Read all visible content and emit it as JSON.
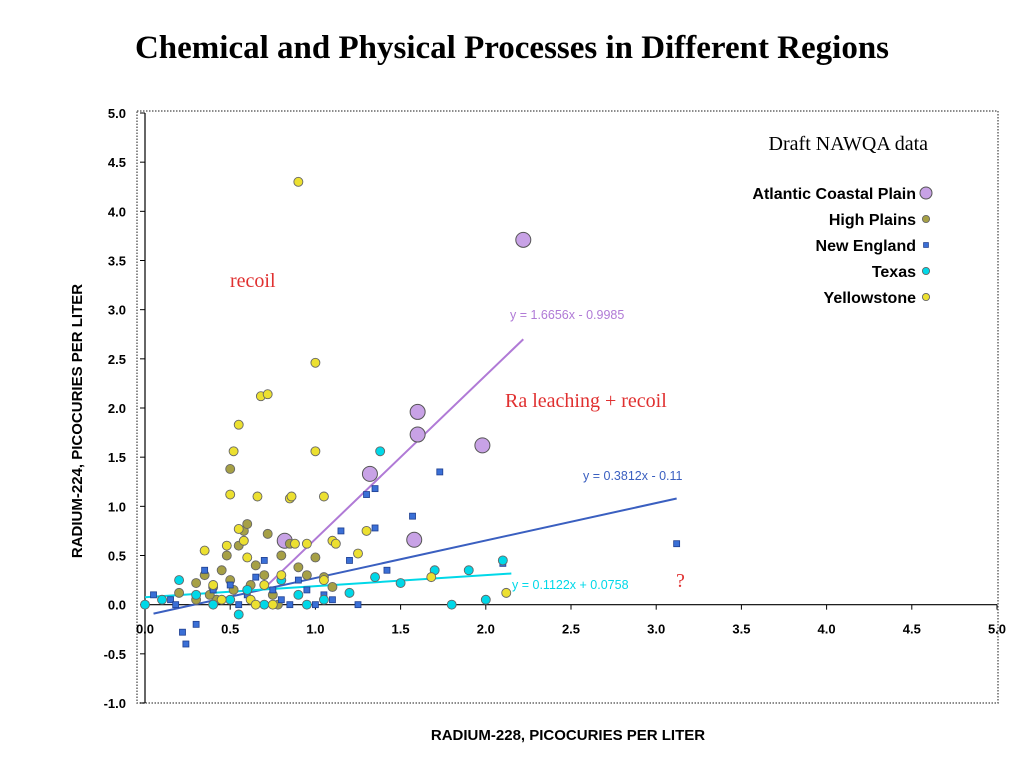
{
  "slide": {
    "title": "Chemical and Physical Processes in Different Regions"
  },
  "chart_data": {
    "type": "scatter",
    "xlabel": "RADIUM-228, PICOCURIES PER LITER",
    "ylabel": "RADIUM-224, PICOCURIES PER LITER",
    "xlim": [
      0,
      5
    ],
    "ylim": [
      -1,
      5
    ],
    "x_ticks": [
      "0.0",
      "0.5",
      "1.0",
      "1.5",
      "2.0",
      "2.5",
      "3.0",
      "3.5",
      "4.0",
      "4.5",
      "5.0"
    ],
    "y_ticks": [
      "5.0",
      "4.5",
      "4.0",
      "3.5",
      "3.0",
      "2.5",
      "2.0",
      "1.5",
      "1.0",
      "0.5",
      "0.0",
      "-0.5",
      "-1.0"
    ],
    "grid": false,
    "legend_position": "top-right",
    "legend_title": "Draft NAWQA data",
    "series": [
      {
        "name": "Atlantic Coastal Plain",
        "color": "#c8a2e6",
        "marker": "large-circle",
        "points": [
          [
            0.82,
            0.65
          ],
          [
            1.32,
            1.33
          ],
          [
            1.58,
            0.66
          ],
          [
            1.6,
            1.73
          ],
          [
            1.6,
            1.96
          ],
          [
            1.98,
            1.62
          ],
          [
            2.22,
            3.71
          ]
        ]
      },
      {
        "name": "High Plains",
        "color": "#a6a045",
        "marker": "circle",
        "points": [
          [
            0.2,
            0.12
          ],
          [
            0.3,
            0.22
          ],
          [
            0.35,
            0.3
          ],
          [
            0.4,
            0.18
          ],
          [
            0.45,
            0.35
          ],
          [
            0.48,
            0.5
          ],
          [
            0.5,
            0.25
          ],
          [
            0.52,
            0.15
          ],
          [
            0.55,
            0.6
          ],
          [
            0.58,
            0.75
          ],
          [
            0.6,
            0.82
          ],
          [
            0.65,
            0.4
          ],
          [
            0.7,
            0.3
          ],
          [
            0.75,
            0.1
          ],
          [
            0.8,
            0.5
          ],
          [
            0.85,
            0.62
          ],
          [
            0.9,
            0.38
          ],
          [
            0.95,
            0.3
          ],
          [
            1.0,
            0.48
          ],
          [
            1.05,
            0.28
          ],
          [
            1.1,
            0.18
          ],
          [
            0.5,
            1.38
          ],
          [
            0.42,
            0.05
          ],
          [
            0.62,
            0.2
          ],
          [
            0.72,
            0.72
          ],
          [
            0.78,
            0.0
          ],
          [
            0.3,
            0.05
          ],
          [
            0.38,
            0.1
          ]
        ]
      },
      {
        "name": "New England",
        "color": "#3a6fd6",
        "marker": "small-square",
        "points": [
          [
            0.05,
            0.1
          ],
          [
            0.15,
            0.05
          ],
          [
            0.18,
            0.0
          ],
          [
            0.22,
            -0.28
          ],
          [
            0.24,
            -0.4
          ],
          [
            0.3,
            -0.2
          ],
          [
            0.35,
            0.35
          ],
          [
            0.4,
            0.15
          ],
          [
            0.45,
            0.05
          ],
          [
            0.5,
            0.2
          ],
          [
            0.55,
            0.0
          ],
          [
            0.6,
            0.1
          ],
          [
            0.65,
            0.28
          ],
          [
            0.7,
            0.45
          ],
          [
            0.75,
            0.15
          ],
          [
            0.8,
            0.05
          ],
          [
            0.85,
            0.0
          ],
          [
            0.9,
            0.25
          ],
          [
            0.95,
            0.15
          ],
          [
            1.0,
            0.0
          ],
          [
            1.05,
            0.1
          ],
          [
            1.1,
            0.05
          ],
          [
            1.15,
            0.75
          ],
          [
            1.2,
            0.45
          ],
          [
            1.25,
            0.0
          ],
          [
            1.3,
            1.12
          ],
          [
            1.35,
            1.18
          ],
          [
            1.35,
            0.78
          ],
          [
            1.42,
            0.35
          ],
          [
            1.57,
            0.9
          ],
          [
            1.73,
            1.35
          ],
          [
            2.1,
            0.42
          ],
          [
            3.12,
            0.62
          ]
        ]
      },
      {
        "name": "Texas",
        "color": "#00d8e8",
        "marker": "circle",
        "points": [
          [
            0.0,
            0.0
          ],
          [
            0.1,
            0.05
          ],
          [
            0.2,
            0.25
          ],
          [
            0.3,
            0.1
          ],
          [
            0.4,
            0.0
          ],
          [
            0.5,
            0.05
          ],
          [
            0.55,
            -0.1
          ],
          [
            0.6,
            0.15
          ],
          [
            0.7,
            0.0
          ],
          [
            0.8,
            0.25
          ],
          [
            0.9,
            0.1
          ],
          [
            0.95,
            0.0
          ],
          [
            1.05,
            0.05
          ],
          [
            1.2,
            0.12
          ],
          [
            1.35,
            0.28
          ],
          [
            1.38,
            1.56
          ],
          [
            1.5,
            0.22
          ],
          [
            1.7,
            0.35
          ],
          [
            1.8,
            0.0
          ],
          [
            1.9,
            0.35
          ],
          [
            2.0,
            0.05
          ],
          [
            2.1,
            0.45
          ]
        ]
      },
      {
        "name": "Yellowstone",
        "color": "#ece030",
        "marker": "circle",
        "points": [
          [
            0.35,
            0.55
          ],
          [
            0.4,
            0.2
          ],
          [
            0.45,
            0.05
          ],
          [
            0.48,
            0.6
          ],
          [
            0.5,
            1.12
          ],
          [
            0.52,
            1.56
          ],
          [
            0.55,
            0.77
          ],
          [
            0.55,
            1.83
          ],
          [
            0.58,
            0.65
          ],
          [
            0.6,
            0.48
          ],
          [
            0.62,
            0.05
          ],
          [
            0.65,
            0.0
          ],
          [
            0.66,
            1.1
          ],
          [
            0.68,
            2.12
          ],
          [
            0.7,
            0.2
          ],
          [
            0.72,
            2.14
          ],
          [
            0.75,
            0.0
          ],
          [
            0.8,
            0.3
          ],
          [
            0.85,
            1.08
          ],
          [
            0.86,
            1.1
          ],
          [
            0.88,
            0.62
          ],
          [
            0.9,
            4.3
          ],
          [
            0.95,
            0.62
          ],
          [
            1.0,
            2.46
          ],
          [
            1.0,
            1.56
          ],
          [
            1.05,
            1.1
          ],
          [
            1.05,
            0.25
          ],
          [
            1.1,
            0.65
          ],
          [
            1.12,
            0.62
          ],
          [
            1.25,
            0.52
          ],
          [
            1.3,
            0.75
          ],
          [
            1.68,
            0.28
          ],
          [
            2.12,
            0.12
          ]
        ]
      }
    ],
    "trendlines": [
      {
        "label": "y = 1.6656x - 0.9985",
        "color": "#b07ad6",
        "slope": 1.6656,
        "intercept": -0.9985,
        "x_range": [
          0.72,
          2.22
        ]
      },
      {
        "label": "y = 0.3812x - 0.11",
        "color": "#3a5fc0",
        "slope": 0.3812,
        "intercept": -0.11,
        "x_range": [
          0.05,
          3.12
        ]
      },
      {
        "label": "y = 0.1122x + 0.0758",
        "color": "#00d8e8",
        "slope": 0.1122,
        "intercept": 0.0758,
        "x_range": [
          0.0,
          2.15
        ]
      }
    ],
    "annotations": [
      {
        "text": "recoil",
        "color": "#e03030"
      },
      {
        "text": "Ra leaching + recoil",
        "color": "#e03030"
      },
      {
        "text": "?",
        "color": "#e03030"
      }
    ]
  }
}
